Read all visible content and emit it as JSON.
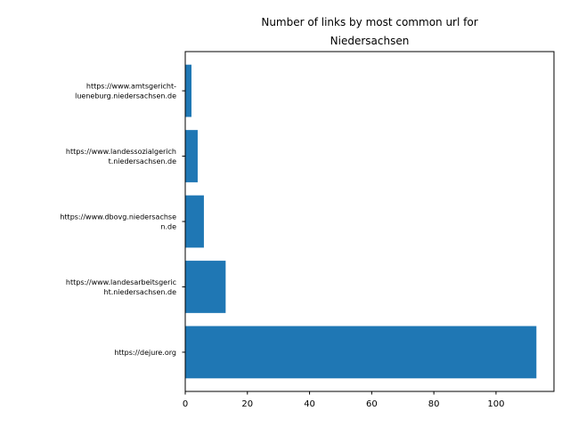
{
  "chart_data": {
    "type": "bar",
    "orientation": "horizontal",
    "title_lines": [
      "Number of links by most common url for",
      "Niedersachsen"
    ],
    "categories": [
      [
        "https://www.amtsgericht-",
        "lueneburg.niedersachsen.de"
      ],
      [
        "https://www.landessozialgerich",
        "t.niedersachsen.de"
      ],
      [
        "https://www.dbovg.niedersachse",
        "n.de"
      ],
      [
        "https://www.landesarbeitsgeric",
        "ht.niedersachsen.de"
      ],
      [
        "https://dejure.org"
      ]
    ],
    "values": [
      2,
      4,
      6,
      13,
      113
    ],
    "xlim": [
      0,
      118.65
    ],
    "xticks": [
      0,
      20,
      40,
      60,
      80,
      100
    ],
    "xlabel": "",
    "ylabel": "",
    "grid": false,
    "bar_color": "#1f77b4"
  }
}
